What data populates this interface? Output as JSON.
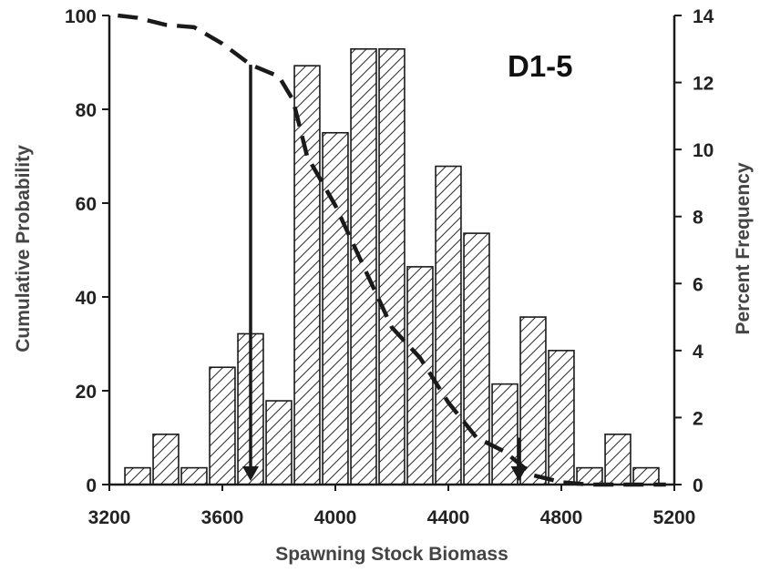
{
  "colors": {
    "ink": "#1a1a1a",
    "label": "#444444",
    "background": "#ffffff"
  },
  "chart_data": {
    "type": "bar",
    "panel_label": "D1-5",
    "xlabel": "Spawning Stock Biomass",
    "ylabel_left": "Cumulative Probability",
    "ylabel_right": "Percent Frequency",
    "xlim": [
      3200,
      5200
    ],
    "ylim_left": [
      0,
      100
    ],
    "ylim_right": [
      0,
      14
    ],
    "x_ticks": [
      3200,
      3600,
      4000,
      4400,
      4800,
      5200
    ],
    "y_left_ticks": [
      0,
      20,
      40,
      60,
      80,
      100
    ],
    "y_right_ticks": [
      0,
      2,
      4,
      6,
      8,
      10,
      12,
      14
    ],
    "bar_width": 90,
    "bar_pattern": "diagonal-hatch",
    "bars": {
      "x": [
        3300,
        3400,
        3500,
        3600,
        3700,
        3800,
        3900,
        4000,
        4100,
        4200,
        4300,
        4400,
        4500,
        4600,
        4700,
        4800,
        4900,
        5000,
        5100
      ],
      "percent_frequency": [
        0.5,
        1.5,
        0.5,
        3.5,
        4.5,
        2.5,
        12.5,
        10.5,
        13.0,
        13.0,
        6.5,
        9.5,
        7.5,
        3.0,
        5.0,
        4.0,
        0.5,
        1.5,
        0.5
      ]
    },
    "series": [
      {
        "style": "dashed",
        "x": [
          3230,
          3300,
          3400,
          3500,
          3600,
          3700,
          3800,
          3850,
          3900,
          4000,
          4100,
          4200,
          4300,
          4400,
          4500,
          4600,
          4700,
          4800,
          4900,
          5000,
          5100,
          5170
        ],
        "cumulative_probability": [
          100,
          99.5,
          98,
          97.5,
          94,
          89.5,
          87,
          82,
          70,
          59.5,
          46.5,
          33.5,
          27,
          17.5,
          10,
          7,
          2,
          0.5,
          0,
          0,
          0,
          0
        ]
      }
    ],
    "annotations": [
      {
        "type": "arrow",
        "x": 3700,
        "from_cumulative_probability": 89.5,
        "to_cumulative_probability": 0
      },
      {
        "type": "arrow",
        "x": 4650,
        "from_cumulative_probability": 10,
        "to_cumulative_probability": 0
      }
    ],
    "grid": false,
    "legend": "none"
  }
}
